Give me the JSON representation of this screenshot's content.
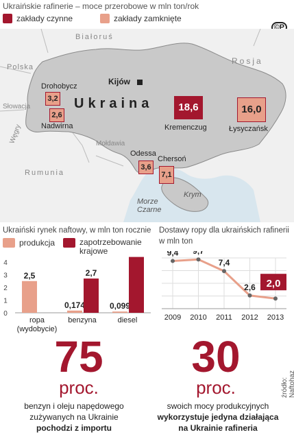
{
  "map": {
    "title": "Ukraińskie rafinerie – moce przerobowe w mln ton/rok",
    "legend": [
      {
        "label": "zakłady czynne",
        "color": "#a3172e"
      },
      {
        "label": "zakłady zamknięte",
        "color": "#e8a08a"
      }
    ],
    "copyright": "©P",
    "country": "Ukraina",
    "capital": "Kijów",
    "neighbours": [
      "Białoruś",
      "Polska",
      "Rosja",
      "Słowacja",
      "Węgry",
      "Mołdawia",
      "Rumunia"
    ],
    "sea": [
      "Morze",
      "Czarne"
    ],
    "crimea": "Krym",
    "refineries": [
      {
        "name": "Drohobycz",
        "value": "3,2",
        "status": "closed"
      },
      {
        "name": "Nadwirna",
        "value": "2,6",
        "status": "closed"
      },
      {
        "name": "Kremenczug",
        "value": "18,6",
        "status": "active"
      },
      {
        "name": "Łysyczańsk",
        "value": "16,0",
        "status": "closed"
      },
      {
        "name": "Odessa",
        "value": "3,6",
        "status": "closed"
      },
      {
        "name": "Chersoń",
        "value": "7,1",
        "status": "closed"
      }
    ]
  },
  "chart_data": [
    {
      "type": "bar",
      "title": "Ukraiński rynek naftowy, w mln ton rocznie",
      "categories": [
        "ropa (wydobycie)",
        "benzyna",
        "diesel"
      ],
      "series": [
        {
          "name": "produkcja",
          "values": [
            2.5,
            0.174,
            0.099
          ],
          "labels": [
            "2,5",
            "0,174",
            "0,099"
          ],
          "color": "#e8a08a"
        },
        {
          "name": "zapotrzebowanie krajowe",
          "values": [
            null,
            2.7,
            4.4
          ],
          "labels": [
            "",
            "2,7",
            "4,4"
          ],
          "color": "#a3172e"
        }
      ],
      "ylim": [
        0,
        4
      ],
      "yticks": [
        "0",
        "1",
        "2",
        "3",
        "4"
      ]
    },
    {
      "type": "line",
      "title": "Dostawy ropy dla ukraińskich rafinerii",
      "subtitle": "w mln ton",
      "x": [
        "2009",
        "2010",
        "2011",
        "2012",
        "2013"
      ],
      "values": [
        9.4,
        9.7,
        7.4,
        2.6,
        2.0
      ],
      "labels": [
        "9,4",
        "9,7",
        "7,4",
        "2,6",
        "2,0"
      ],
      "ylim": [
        0,
        10
      ],
      "grid": true
    }
  ],
  "facts": [
    {
      "number": "75",
      "unit": "proc.",
      "caption": [
        "benzyn i oleju napędowego",
        "zużywanych na Ukrainie",
        "pochodzi z importu"
      ]
    },
    {
      "number": "30",
      "unit": "proc.",
      "caption": [
        "swoich mocy produkcyjnych",
        "wykorzystuje jedyna działająca",
        "na Ukrainie rafineria"
      ]
    }
  ],
  "source": "źródło: Naftohaz"
}
